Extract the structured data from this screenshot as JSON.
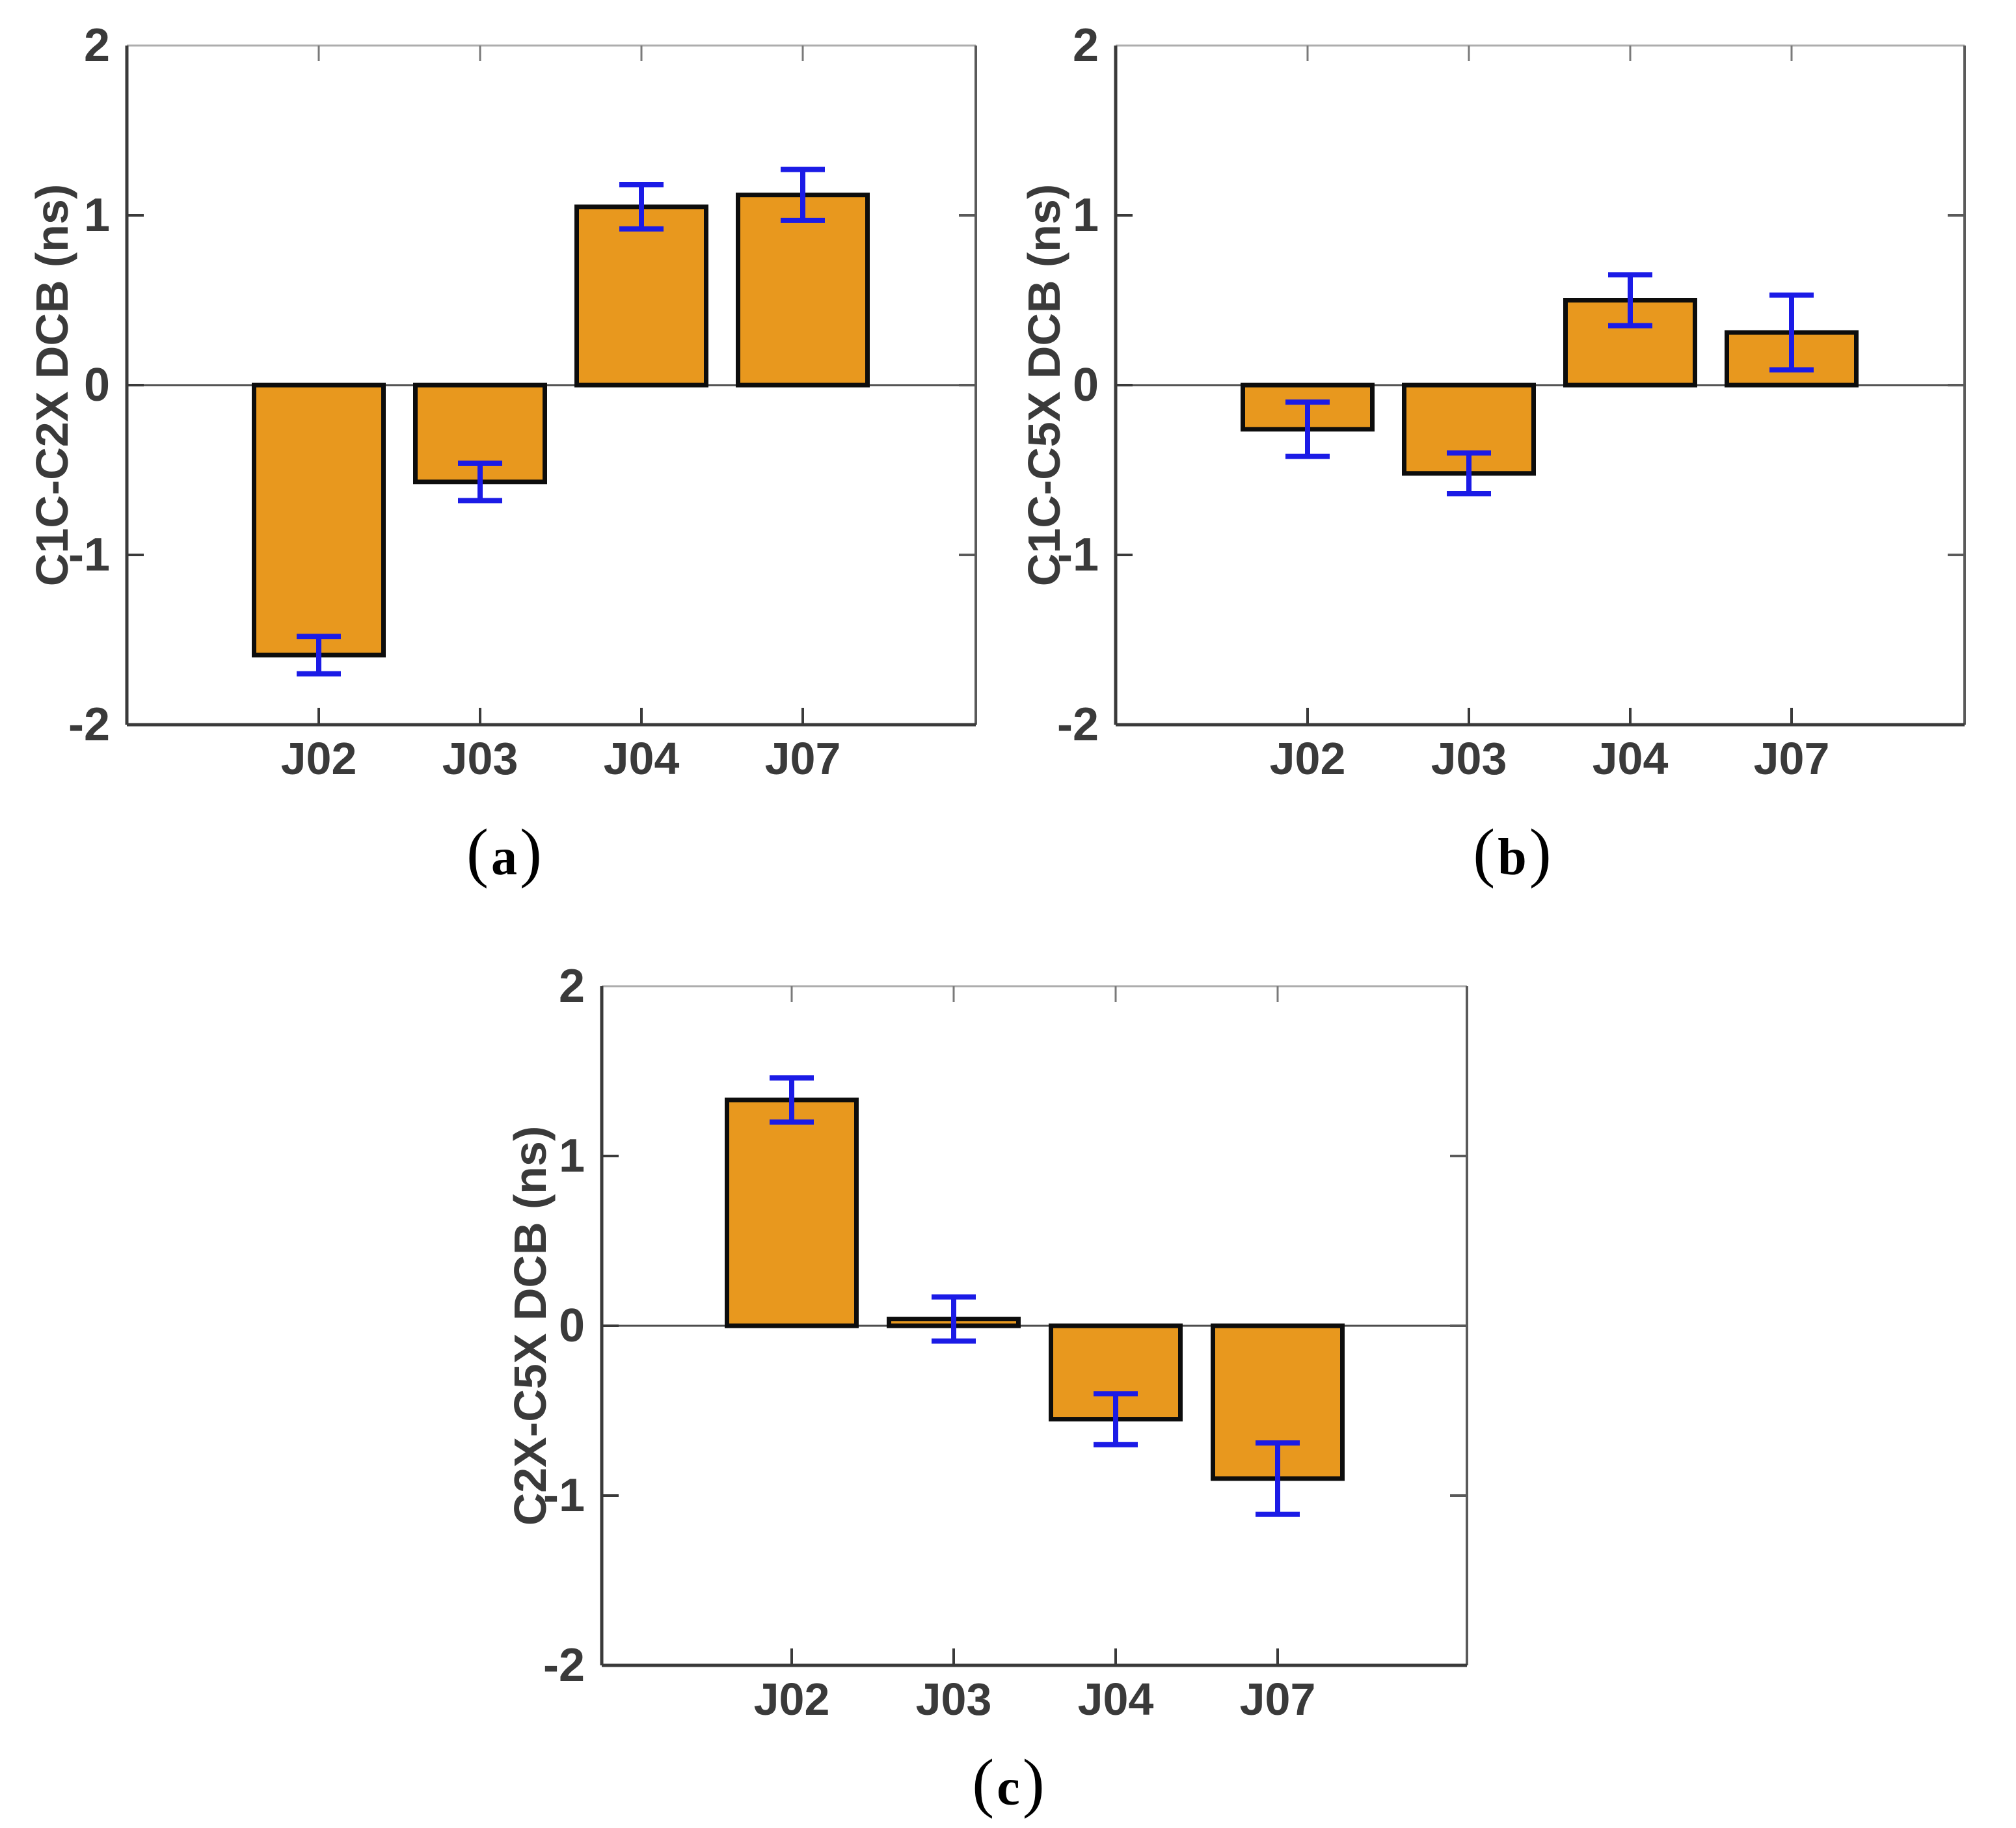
{
  "figure": {
    "background": "#FFFFFF",
    "description": "Three bar charts of satellite DCB estimates with error bars"
  },
  "style": {
    "bar_color": "#E8981E",
    "bar_edge_color": "#0D0D0D",
    "error_color": "#1B1BE6",
    "axis_color": "#3A3A3A",
    "axis_top_color": "#ADADAD",
    "axis_right_color": "#5A5A5A",
    "zero_line_color": "#4D4D4D",
    "text_color": "#3A3A3A",
    "background": "#FFFFFF"
  },
  "chart_data": [
    {
      "id": "a",
      "type": "bar",
      "title": "",
      "xlabel": "",
      "ylabel": "C1C-C2X DCB (ns)",
      "categories": [
        "J02",
        "J03",
        "J04",
        "J07"
      ],
      "values": [
        -1.59,
        -0.57,
        1.05,
        1.12
      ],
      "errors": [
        0.11,
        0.11,
        0.13,
        0.15
      ],
      "ylim": [
        -2,
        2
      ],
      "yticks": [
        -2,
        -1,
        0,
        1,
        2
      ],
      "ytick_labels": [
        "-2",
        "-1",
        "0",
        "1",
        "2"
      ],
      "grid": false,
      "legend": "none",
      "caption_open": "(",
      "caption_letter": "a",
      "caption_close": ")"
    },
    {
      "id": "b",
      "type": "bar",
      "title": "",
      "xlabel": "",
      "ylabel": "C1C-C5X DCB (ns)",
      "categories": [
        "J02",
        "J03",
        "J04",
        "J07"
      ],
      "values": [
        -0.26,
        -0.52,
        0.5,
        0.31
      ],
      "errors": [
        0.16,
        0.12,
        0.15,
        0.22
      ],
      "ylim": [
        -2,
        2
      ],
      "yticks": [
        -2,
        -1,
        0,
        1,
        2
      ],
      "ytick_labels": [
        "-2",
        "-1",
        "0",
        "1",
        "2"
      ],
      "grid": false,
      "legend": "none",
      "caption_open": "(",
      "caption_letter": "b",
      "caption_close": ")"
    },
    {
      "id": "c",
      "type": "bar",
      "title": "",
      "xlabel": "",
      "ylabel": "C2X-C5X DCB (ns)",
      "categories": [
        "J02",
        "J03",
        "J04",
        "J07"
      ],
      "values": [
        1.33,
        0.04,
        -0.55,
        -0.9
      ],
      "errors": [
        0.13,
        0.13,
        0.15,
        0.21
      ],
      "ylim": [
        -2,
        2
      ],
      "yticks": [
        -2,
        -1,
        0,
        1,
        2
      ],
      "ytick_labels": [
        "-2",
        "-1",
        "0",
        "1",
        "2"
      ],
      "grid": false,
      "legend": "none",
      "caption_open": "(",
      "caption_letter": "c",
      "caption_close": ")"
    }
  ]
}
